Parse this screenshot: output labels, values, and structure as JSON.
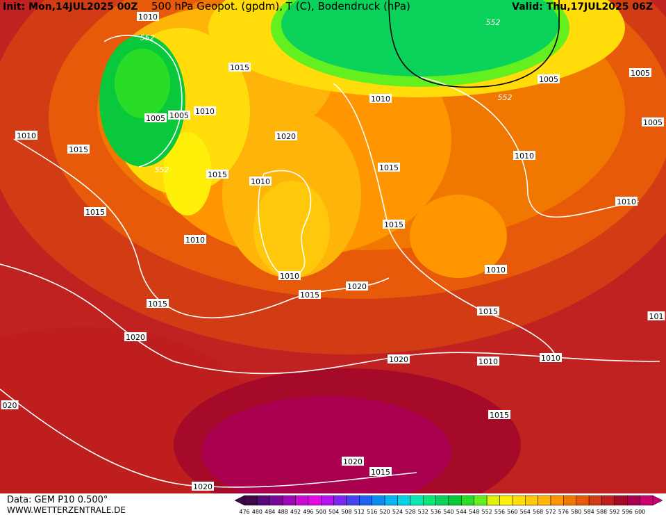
{
  "header": {
    "init": "Init: Mon,14JUL2025 00Z",
    "title": "500 hPa Geopot. (gpdm), T (C), Bodendruck (hPa)",
    "valid": "Valid: Thu,17JUL2025 06Z"
  },
  "footer": {
    "data_source": "Data: GEM P10 0.500°",
    "website": "WWW.WETTERZENTRALE.DE"
  },
  "isobar_labels": [
    "1010",
    "552",
    "1015",
    "1010",
    "1005",
    "1005",
    "1010",
    "1015",
    "1020",
    "552",
    "1015",
    "1010",
    "1015",
    "1010",
    "1010",
    "1015",
    "1020",
    "1015",
    "1020",
    "1010",
    "1015",
    "1015",
    "1010",
    "1005",
    "1005",
    "1005",
    "552",
    "552",
    "1010",
    "1010",
    "1015",
    "1010",
    "1010",
    "1020",
    "1015",
    "1020",
    "1015",
    "1020",
    "020",
    "101"
  ],
  "colorbar": {
    "levels": [
      476,
      480,
      484,
      488,
      492,
      496,
      500,
      504,
      508,
      512,
      516,
      520,
      524,
      528,
      532,
      536,
      540,
      544,
      548,
      552,
      556,
      560,
      564,
      568,
      572,
      576,
      580,
      584,
      588,
      592,
      596,
      600
    ],
    "colors": [
      "#3c0a4b",
      "#5a0a78",
      "#7a0a96",
      "#a00ab4",
      "#c80ad2",
      "#e60ae6",
      "#b414f0",
      "#7d28f0",
      "#4646f0",
      "#1e64f0",
      "#0a8cf0",
      "#0ab4f0",
      "#0ad2e6",
      "#0ae6b4",
      "#0ae678",
      "#0ad25a",
      "#0ac83c",
      "#28dc28",
      "#64f01e",
      "#dcf00a",
      "#fff00a",
      "#ffdc0a",
      "#ffc80a",
      "#ffb40a",
      "#ff9600",
      "#f07800",
      "#e65a0a",
      "#d23c14",
      "#be1e1e",
      "#a50a28",
      "#aa0050",
      "#c8006e"
    ]
  }
}
